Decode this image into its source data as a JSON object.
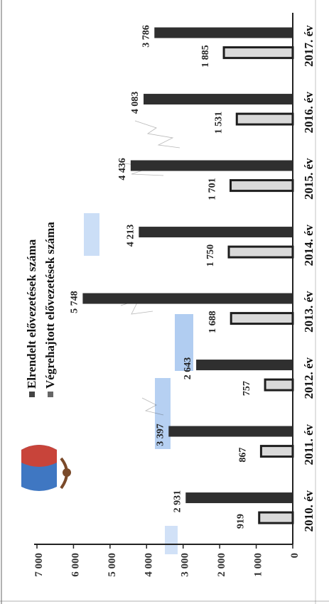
{
  "chart_data": {
    "type": "bar",
    "orientation": "rotated-90-ccw",
    "categories": [
      "2010. év",
      "2011. év",
      "2012. év",
      "2013. év",
      "2014. év",
      "2015. év",
      "2016. év",
      "2017. év"
    ],
    "series": [
      {
        "name": "Elrendelt elővezetések száma",
        "color": "#2f2f2f",
        "values": [
          2931,
          3397,
          2643,
          5748,
          4213,
          4436,
          4083,
          3786
        ],
        "labels": [
          "2 931",
          "3 397",
          "2 643",
          "5 748",
          "4 213",
          "4 436",
          "4 083",
          "3 786"
        ]
      },
      {
        "name": "Végrehajtott elővezetések száma",
        "color": "#d9d9d9",
        "values": [
          919,
          867,
          757,
          1688,
          1750,
          1701,
          1531,
          1885
        ],
        "labels": [
          "919",
          "867",
          "757",
          "1 688",
          "1 750",
          "1 701",
          "1 531",
          "1 885"
        ]
      }
    ],
    "yticks": [
      "0",
      "1 000",
      "2 000",
      "3 000",
      "4 000",
      "5 000",
      "6 000",
      "7 000"
    ],
    "ylim": [
      0,
      7000
    ],
    "legend_position": "top",
    "grid": false
  },
  "colors": {
    "bar_dark": "#2f2f2f",
    "bar_light": "#d9d9d9",
    "scan_blue": "#9ec0ee",
    "logo_red": "#c8443a",
    "logo_blue": "#3f77c2"
  },
  "icons": [
    "coat-of-arms-icon"
  ]
}
